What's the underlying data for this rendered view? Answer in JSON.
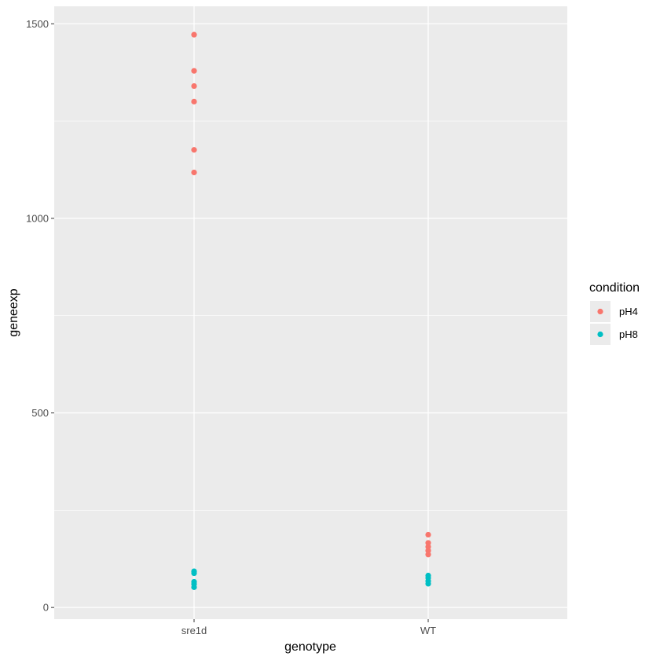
{
  "chart_data": {
    "type": "scatter",
    "xlabel": "genotype",
    "ylabel": "geneexp",
    "categories": [
      "sre1d",
      "WT"
    ],
    "ylim": [
      -30,
      1545
    ],
    "yticks": [
      0,
      500,
      1000,
      1500
    ],
    "ytick_labels": [
      "0",
      "500",
      "1000",
      "1500"
    ],
    "grid": true,
    "background": "#ebebeb",
    "legend": {
      "title": "condition",
      "placement": "right",
      "entries": [
        "pH4",
        "pH8"
      ]
    },
    "series": [
      {
        "name": "pH4",
        "color": "#f8766d",
        "points": [
          {
            "x": "sre1d",
            "y": 1472
          },
          {
            "x": "sre1d",
            "y": 1379
          },
          {
            "x": "sre1d",
            "y": 1340
          },
          {
            "x": "sre1d",
            "y": 1300
          },
          {
            "x": "sre1d",
            "y": 1176
          },
          {
            "x": "sre1d",
            "y": 1118
          },
          {
            "x": "WT",
            "y": 187
          },
          {
            "x": "WT",
            "y": 166
          },
          {
            "x": "WT",
            "y": 156
          },
          {
            "x": "WT",
            "y": 146
          },
          {
            "x": "WT",
            "y": 136
          }
        ]
      },
      {
        "name": "pH8",
        "color": "#00bfc4",
        "points": [
          {
            "x": "sre1d",
            "y": 93
          },
          {
            "x": "sre1d",
            "y": 88
          },
          {
            "x": "sre1d",
            "y": 66
          },
          {
            "x": "sre1d",
            "y": 60
          },
          {
            "x": "sre1d",
            "y": 52
          },
          {
            "x": "WT",
            "y": 82
          },
          {
            "x": "WT",
            "y": 76
          },
          {
            "x": "WT",
            "y": 68
          },
          {
            "x": "WT",
            "y": 61
          }
        ]
      }
    ]
  }
}
